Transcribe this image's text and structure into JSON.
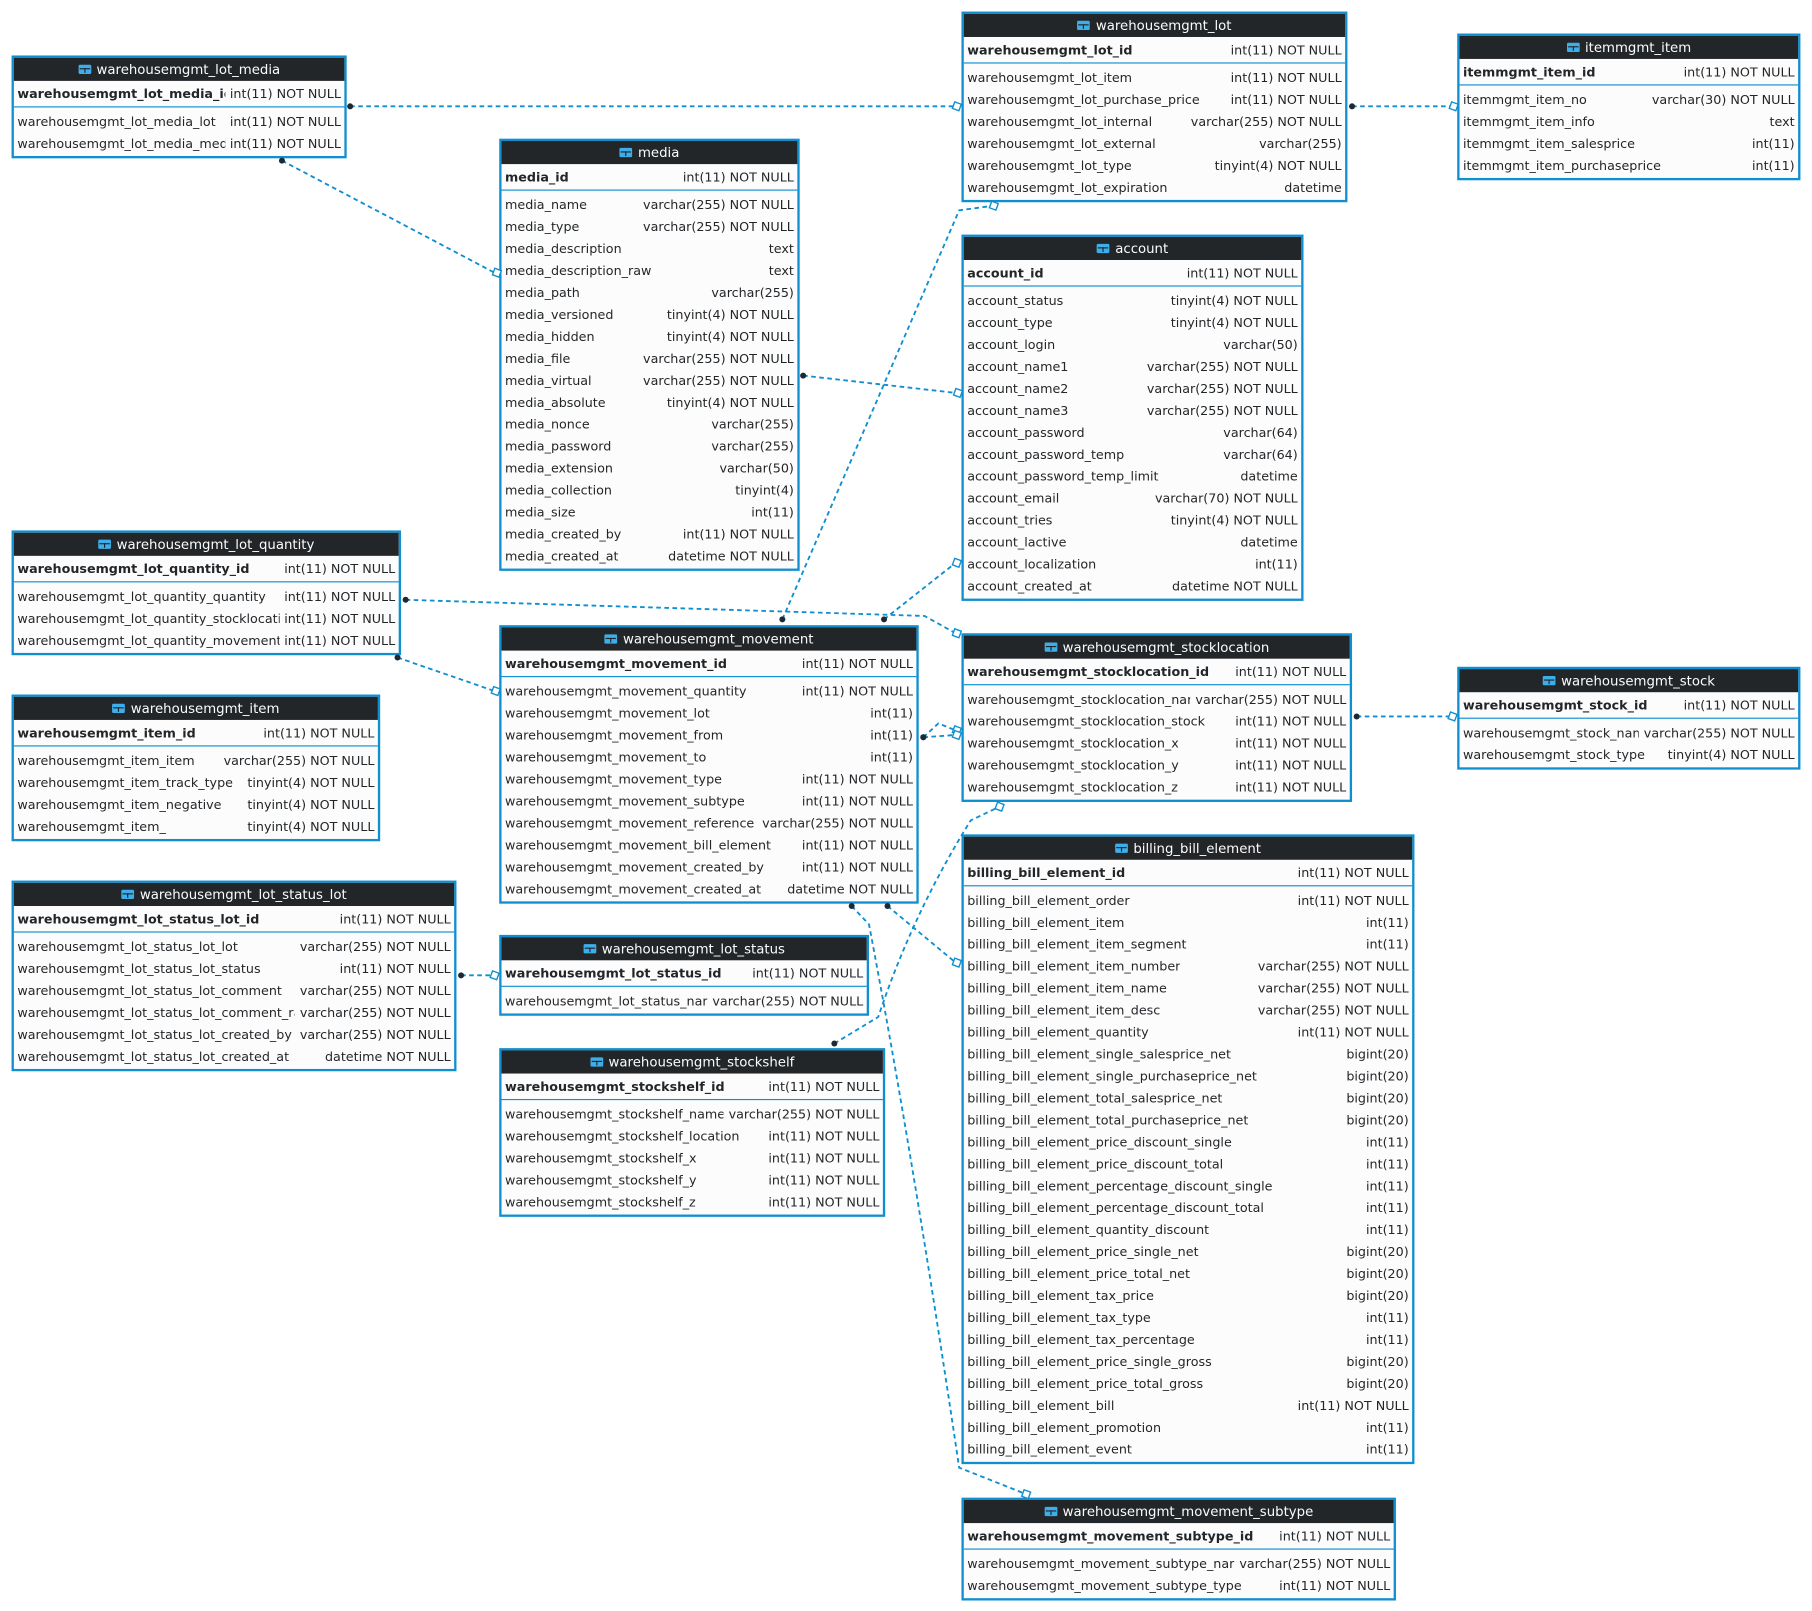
{
  "colors": {
    "border": "#0f8fd0",
    "header": "#232629",
    "body": "#fcfcfc",
    "link": "#0f8fd0",
    "icon": "#3daee9"
  },
  "icons": {
    "table": "table-icon"
  },
  "tables": [
    {
      "id": "warehousemgmt_lot_media",
      "title": "warehousemgmt_lot_media",
      "pk": {
        "name": "warehousemgmt_lot_media_id",
        "type": "int(11) NOT NULL"
      },
      "columns": [
        {
          "name": "warehousemgmt_lot_media_lot",
          "type": "int(11) NOT NULL"
        },
        {
          "name": "warehousemgmt_lot_media_media",
          "type": "int(11) NOT NULL"
        }
      ]
    },
    {
      "id": "media",
      "title": "media",
      "pk": {
        "name": "media_id",
        "type": "int(11) NOT NULL"
      },
      "columns": [
        {
          "name": "media_name",
          "type": "varchar(255) NOT NULL"
        },
        {
          "name": "media_type",
          "type": "varchar(255) NOT NULL"
        },
        {
          "name": "media_description",
          "type": "text"
        },
        {
          "name": "media_description_raw",
          "type": "text"
        },
        {
          "name": "media_path",
          "type": "varchar(255)"
        },
        {
          "name": "media_versioned",
          "type": "tinyint(4) NOT NULL"
        },
        {
          "name": "media_hidden",
          "type": "tinyint(4) NOT NULL"
        },
        {
          "name": "media_file",
          "type": "varchar(255) NOT NULL"
        },
        {
          "name": "media_virtual",
          "type": "varchar(255) NOT NULL"
        },
        {
          "name": "media_absolute",
          "type": "tinyint(4) NOT NULL"
        },
        {
          "name": "media_nonce",
          "type": "varchar(255)"
        },
        {
          "name": "media_password",
          "type": "varchar(255)"
        },
        {
          "name": "media_extension",
          "type": "varchar(50)"
        },
        {
          "name": "media_collection",
          "type": "tinyint(4)"
        },
        {
          "name": "media_size",
          "type": "int(11)"
        },
        {
          "name": "media_created_by",
          "type": "int(11) NOT NULL"
        },
        {
          "name": "media_created_at",
          "type": "datetime NOT NULL"
        }
      ]
    },
    {
      "id": "warehousemgmt_lot",
      "title": "warehousemgmt_lot",
      "pk": {
        "name": "warehousemgmt_lot_id",
        "type": "int(11) NOT NULL"
      },
      "columns": [
        {
          "name": "warehousemgmt_lot_item",
          "type": "int(11) NOT NULL"
        },
        {
          "name": "warehousemgmt_lot_purchase_price",
          "type": "int(11) NOT NULL"
        },
        {
          "name": "warehousemgmt_lot_internal",
          "type": "varchar(255) NOT NULL"
        },
        {
          "name": "warehousemgmt_lot_external",
          "type": "varchar(255)"
        },
        {
          "name": "warehousemgmt_lot_type",
          "type": "tinyint(4) NOT NULL"
        },
        {
          "name": "warehousemgmt_lot_expiration",
          "type": "datetime"
        }
      ]
    },
    {
      "id": "itemmgmt_item",
      "title": "itemmgmt_item",
      "pk": {
        "name": "itemmgmt_item_id",
        "type": "int(11) NOT NULL"
      },
      "columns": [
        {
          "name": "itemmgmt_item_no",
          "type": "varchar(30) NOT NULL"
        },
        {
          "name": "itemmgmt_item_info",
          "type": "text"
        },
        {
          "name": "itemmgmt_item_salesprice",
          "type": "int(11)"
        },
        {
          "name": "itemmgmt_item_purchaseprice",
          "type": "int(11)"
        }
      ]
    },
    {
      "id": "account",
      "title": "account",
      "pk": {
        "name": "account_id",
        "type": "int(11) NOT NULL"
      },
      "columns": [
        {
          "name": "account_status",
          "type": "tinyint(4) NOT NULL"
        },
        {
          "name": "account_type",
          "type": "tinyint(4) NOT NULL"
        },
        {
          "name": "account_login",
          "type": "varchar(50)"
        },
        {
          "name": "account_name1",
          "type": "varchar(255) NOT NULL"
        },
        {
          "name": "account_name2",
          "type": "varchar(255) NOT NULL"
        },
        {
          "name": "account_name3",
          "type": "varchar(255) NOT NULL"
        },
        {
          "name": "account_password",
          "type": "varchar(64)"
        },
        {
          "name": "account_password_temp",
          "type": "varchar(64)"
        },
        {
          "name": "account_password_temp_limit",
          "type": "datetime"
        },
        {
          "name": "account_email",
          "type": "varchar(70) NOT NULL"
        },
        {
          "name": "account_tries",
          "type": "tinyint(4) NOT NULL"
        },
        {
          "name": "account_lactive",
          "type": "datetime"
        },
        {
          "name": "account_localization",
          "type": "int(11)"
        },
        {
          "name": "account_created_at",
          "type": "datetime NOT NULL"
        }
      ]
    },
    {
      "id": "warehousemgmt_lot_quantity",
      "title": "warehousemgmt_lot_quantity",
      "pk": {
        "name": "warehousemgmt_lot_quantity_id",
        "type": "int(11) NOT NULL"
      },
      "columns": [
        {
          "name": "warehousemgmt_lot_quantity_quantity",
          "type": "int(11) NOT NULL"
        },
        {
          "name": "warehousemgmt_lot_quantity_stocklocation",
          "type": "int(11) NOT NULL"
        },
        {
          "name": "warehousemgmt_lot_quantity_movement",
          "type": "int(11) NOT NULL"
        }
      ]
    },
    {
      "id": "warehousemgmt_movement",
      "title": "warehousemgmt_movement",
      "pk": {
        "name": "warehousemgmt_movement_id",
        "type": "int(11) NOT NULL"
      },
      "columns": [
        {
          "name": "warehousemgmt_movement_quantity",
          "type": "int(11) NOT NULL"
        },
        {
          "name": "warehousemgmt_movement_lot",
          "type": "int(11)"
        },
        {
          "name": "warehousemgmt_movement_from",
          "type": "int(11)"
        },
        {
          "name": "warehousemgmt_movement_to",
          "type": "int(11)"
        },
        {
          "name": "warehousemgmt_movement_type",
          "type": "int(11) NOT NULL"
        },
        {
          "name": "warehousemgmt_movement_subtype",
          "type": "int(11) NOT NULL"
        },
        {
          "name": "warehousemgmt_movement_reference",
          "type": "varchar(255) NOT NULL"
        },
        {
          "name": "warehousemgmt_movement_bill_element",
          "type": "int(11) NOT NULL"
        },
        {
          "name": "warehousemgmt_movement_created_by",
          "type": "int(11) NOT NULL"
        },
        {
          "name": "warehousemgmt_movement_created_at",
          "type": "datetime NOT NULL"
        }
      ]
    },
    {
      "id": "warehousemgmt_stocklocation",
      "title": "warehousemgmt_stocklocation",
      "pk": {
        "name": "warehousemgmt_stocklocation_id",
        "type": "int(11) NOT NULL"
      },
      "columns": [
        {
          "name": "warehousemgmt_stocklocation_name",
          "type": "varchar(255) NOT NULL"
        },
        {
          "name": "warehousemgmt_stocklocation_stock",
          "type": "int(11) NOT NULL"
        },
        {
          "name": "warehousemgmt_stocklocation_x",
          "type": "int(11) NOT NULL"
        },
        {
          "name": "warehousemgmt_stocklocation_y",
          "type": "int(11) NOT NULL"
        },
        {
          "name": "warehousemgmt_stocklocation_z",
          "type": "int(11) NOT NULL"
        }
      ]
    },
    {
      "id": "warehousemgmt_stock",
      "title": "warehousemgmt_stock",
      "pk": {
        "name": "warehousemgmt_stock_id",
        "type": "int(11) NOT NULL"
      },
      "columns": [
        {
          "name": "warehousemgmt_stock_name",
          "type": "varchar(255) NOT NULL"
        },
        {
          "name": "warehousemgmt_stock_type",
          "type": "tinyint(4) NOT NULL"
        }
      ]
    },
    {
      "id": "warehousemgmt_item",
      "title": "warehousemgmt_item",
      "pk": {
        "name": "warehousemgmt_item_id",
        "type": "int(11) NOT NULL"
      },
      "columns": [
        {
          "name": "warehousemgmt_item_item",
          "type": "varchar(255) NOT NULL"
        },
        {
          "name": "warehousemgmt_item_track_type",
          "type": "tinyint(4) NOT NULL"
        },
        {
          "name": "warehousemgmt_item_negative",
          "type": "tinyint(4) NOT NULL"
        },
        {
          "name": "warehousemgmt_item_",
          "type": "tinyint(4) NOT NULL"
        }
      ]
    },
    {
      "id": "warehousemgmt_lot_status_lot",
      "title": "warehousemgmt_lot_status_lot",
      "pk": {
        "name": "warehousemgmt_lot_status_lot_id",
        "type": "int(11) NOT NULL"
      },
      "columns": [
        {
          "name": "warehousemgmt_lot_status_lot_lot",
          "type": "varchar(255) NOT NULL"
        },
        {
          "name": "warehousemgmt_lot_status_lot_status",
          "type": "int(11) NOT NULL"
        },
        {
          "name": "warehousemgmt_lot_status_lot_comment",
          "type": "varchar(255) NOT NULL"
        },
        {
          "name": "warehousemgmt_lot_status_lot_comment_raw",
          "type": "varchar(255) NOT NULL"
        },
        {
          "name": "warehousemgmt_lot_status_lot_created_by",
          "type": "varchar(255) NOT NULL"
        },
        {
          "name": "warehousemgmt_lot_status_lot_created_at",
          "type": "datetime NOT NULL"
        }
      ]
    },
    {
      "id": "warehousemgmt_lot_status",
      "title": "warehousemgmt_lot_status",
      "pk": {
        "name": "warehousemgmt_lot_status_id",
        "type": "int(11) NOT NULL"
      },
      "columns": [
        {
          "name": "warehousemgmt_lot_status_name",
          "type": "varchar(255) NOT NULL"
        }
      ]
    },
    {
      "id": "billing_bill_element",
      "title": "billing_bill_element",
      "pk": {
        "name": "billing_bill_element_id",
        "type": "int(11) NOT NULL"
      },
      "columns": [
        {
          "name": "billing_bill_element_order",
          "type": "int(11) NOT NULL"
        },
        {
          "name": "billing_bill_element_item",
          "type": "int(11)"
        },
        {
          "name": "billing_bill_element_item_segment",
          "type": "int(11)"
        },
        {
          "name": "billing_bill_element_item_number",
          "type": "varchar(255) NOT NULL"
        },
        {
          "name": "billing_bill_element_item_name",
          "type": "varchar(255) NOT NULL"
        },
        {
          "name": "billing_bill_element_item_desc",
          "type": "varchar(255) NOT NULL"
        },
        {
          "name": "billing_bill_element_quantity",
          "type": "int(11) NOT NULL"
        },
        {
          "name": "billing_bill_element_single_salesprice_net",
          "type": "bigint(20)"
        },
        {
          "name": "billing_bill_element_single_purchaseprice_net",
          "type": "bigint(20)"
        },
        {
          "name": "billing_bill_element_total_salesprice_net",
          "type": "bigint(20)"
        },
        {
          "name": "billing_bill_element_total_purchaseprice_net",
          "type": "bigint(20)"
        },
        {
          "name": "billing_bill_element_price_discount_single",
          "type": "int(11)"
        },
        {
          "name": "billing_bill_element_price_discount_total",
          "type": "int(11)"
        },
        {
          "name": "billing_bill_element_percentage_discount_single",
          "type": "int(11)"
        },
        {
          "name": "billing_bill_element_percentage_discount_total",
          "type": "int(11)"
        },
        {
          "name": "billing_bill_element_quantity_discount",
          "type": "int(11)"
        },
        {
          "name": "billing_bill_element_price_single_net",
          "type": "bigint(20)"
        },
        {
          "name": "billing_bill_element_price_total_net",
          "type": "bigint(20)"
        },
        {
          "name": "billing_bill_element_tax_price",
          "type": "bigint(20)"
        },
        {
          "name": "billing_bill_element_tax_type",
          "type": "int(11)"
        },
        {
          "name": "billing_bill_element_tax_percentage",
          "type": "int(11)"
        },
        {
          "name": "billing_bill_element_price_single_gross",
          "type": "bigint(20)"
        },
        {
          "name": "billing_bill_element_price_total_gross",
          "type": "bigint(20)"
        },
        {
          "name": "billing_bill_element_bill",
          "type": "int(11) NOT NULL"
        },
        {
          "name": "billing_bill_element_promotion",
          "type": "int(11)"
        },
        {
          "name": "billing_bill_element_event",
          "type": "int(11)"
        }
      ]
    },
    {
      "id": "warehousemgmt_stockshelf",
      "title": "warehousemgmt_stockshelf",
      "pk": {
        "name": "warehousemgmt_stockshelf_id",
        "type": "int(11) NOT NULL"
      },
      "columns": [
        {
          "name": "warehousemgmt_stockshelf_name",
          "type": "varchar(255) NOT NULL"
        },
        {
          "name": "warehousemgmt_stockshelf_location",
          "type": "int(11) NOT NULL"
        },
        {
          "name": "warehousemgmt_stockshelf_x",
          "type": "int(11) NOT NULL"
        },
        {
          "name": "warehousemgmt_stockshelf_y",
          "type": "int(11) NOT NULL"
        },
        {
          "name": "warehousemgmt_stockshelf_z",
          "type": "int(11) NOT NULL"
        }
      ]
    },
    {
      "id": "warehousemgmt_movement_subtype",
      "title": "warehousemgmt_movement_subtype",
      "pk": {
        "name": "warehousemgmt_movement_subtype_id",
        "type": "int(11) NOT NULL"
      },
      "columns": [
        {
          "name": "warehousemgmt_movement_subtype_name",
          "type": "varchar(255) NOT NULL"
        },
        {
          "name": "warehousemgmt_movement_subtype_type",
          "type": "int(11) NOT NULL"
        }
      ]
    }
  ],
  "relations": [
    {
      "from": "warehousemgmt_lot_media",
      "to": "warehousemgmt_lot"
    },
    {
      "from": "warehousemgmt_lot_media",
      "to": "media"
    },
    {
      "from": "warehousemgmt_lot",
      "to": "itemmgmt_item"
    },
    {
      "from": "media",
      "to": "account"
    },
    {
      "from": "warehousemgmt_movement",
      "to": "warehousemgmt_lot"
    },
    {
      "from": "warehousemgmt_movement",
      "to": "account"
    },
    {
      "from": "warehousemgmt_lot_quantity",
      "to": "warehousemgmt_stocklocation"
    },
    {
      "from": "warehousemgmt_lot_quantity",
      "to": "warehousemgmt_movement"
    },
    {
      "from": "warehousemgmt_movement",
      "to": "warehousemgmt_stocklocation"
    },
    {
      "from": "warehousemgmt_movement",
      "to": "warehousemgmt_stocklocation"
    },
    {
      "from": "warehousemgmt_lot_status_lot",
      "to": "warehousemgmt_lot_status"
    },
    {
      "from": "warehousemgmt_stocklocation",
      "to": "warehousemgmt_stock"
    },
    {
      "from": "warehousemgmt_movement",
      "to": "billing_bill_element"
    },
    {
      "from": "warehousemgmt_stockshelf",
      "to": "warehousemgmt_stocklocation"
    },
    {
      "from": "warehousemgmt_movement",
      "to": "warehousemgmt_movement_subtype"
    }
  ]
}
